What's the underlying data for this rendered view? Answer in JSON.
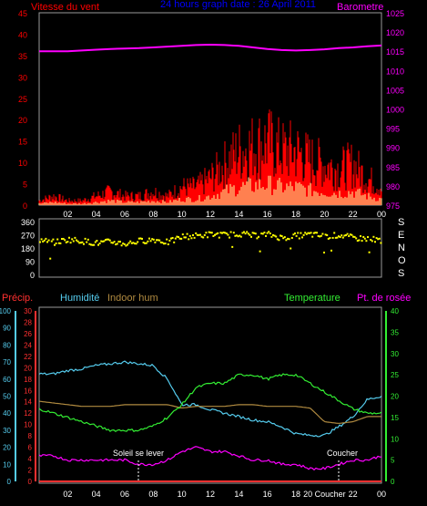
{
  "colors": {
    "wind": "#ff0000",
    "gust": "#ff0000",
    "avg": "#ffffa0",
    "baro": "#ff00ff",
    "dir": "#ffff00",
    "frame": "#9a9a9a",
    "temp": "#33ee33",
    "dew": "#ff00ff",
    "humid": "#55ccee",
    "indoor": "#b08a40",
    "precip": "#ff3030",
    "annot": "#ffffff",
    "title": "#0000ff",
    "tick": "#ffffff"
  },
  "panel1": {
    "title": "24 hours graph date : 26 April 2011",
    "left_label": "Vitesse du vent",
    "right_label": "Barometre",
    "left_ticks": [
      "45",
      "40",
      "35",
      "30",
      "25",
      "20",
      "15",
      "10",
      "5",
      "0"
    ],
    "right_ticks": [
      "1025",
      "1020",
      "1015",
      "1010",
      "1005",
      "1000",
      "995",
      "990",
      "985",
      "980",
      "975"
    ],
    "x_ticks": [
      "02",
      "04",
      "06",
      "08",
      "10",
      "12",
      "14",
      "16",
      "18",
      "20",
      "22",
      "00"
    ]
  },
  "panel2": {
    "left_ticks": [
      "360",
      "270",
      "180",
      "90",
      "0"
    ],
    "compass": [
      "S",
      "E",
      "N",
      "O",
      "S"
    ]
  },
  "panel3": {
    "label_precip": "Précip.",
    "label_humid": "Humidité",
    "label_indoor": "Indoor hum",
    "label_temp": "Temperature",
    "label_dew": "Pt. de rosée",
    "humid_ticks": [
      "100",
      "90",
      "80",
      "70",
      "60",
      "50",
      "40",
      "30",
      "20",
      "10",
      "0"
    ],
    "precip_ticks": [
      "30",
      "28",
      "26",
      "24",
      "22",
      "20",
      "18",
      "16",
      "14",
      "12",
      "10",
      "8",
      "6",
      "4",
      "2",
      "0"
    ],
    "right_ticks": [
      "40",
      "35",
      "30",
      "25",
      "20",
      "15",
      "10",
      "5",
      "0"
    ],
    "x_ticks": [
      "02",
      "04",
      "06",
      "08",
      "10",
      "12",
      "14",
      "16",
      "18",
      "20 Coucher",
      "22",
      "00"
    ],
    "sunrise": "Soleil se lever",
    "sunset": "Coucher"
  },
  "chart_data": [
    {
      "type": "line",
      "title": "24 hours graph date : 26 April 2011",
      "x": [
        0,
        1,
        2,
        3,
        4,
        5,
        6,
        7,
        8,
        9,
        10,
        11,
        12,
        13,
        14,
        15,
        16,
        17,
        18,
        19,
        20,
        21,
        22,
        23,
        24
      ],
      "x_tick_labels": [
        "02",
        "04",
        "06",
        "08",
        "10",
        "12",
        "14",
        "16",
        "18",
        "20",
        "22",
        "00"
      ],
      "series": [
        {
          "name": "Vitesse du vent",
          "axis": "left",
          "ylim": [
            0,
            45
          ],
          "values": [
            1,
            2,
            1,
            1,
            2,
            3,
            2,
            2,
            3,
            2,
            4,
            4,
            6,
            9,
            12,
            13,
            14,
            12,
            12,
            10,
            9,
            8,
            9,
            6,
            4
          ]
        },
        {
          "name": "Barometre",
          "axis": "right",
          "ylim": [
            975,
            1025
          ],
          "values": [
            1015,
            1015,
            1015,
            1015.2,
            1015.4,
            1015.6,
            1015.7,
            1015.8,
            1016,
            1016.2,
            1016.4,
            1016.6,
            1016.7,
            1016.6,
            1016.4,
            1016,
            1015.6,
            1015.3,
            1015.2,
            1015.3,
            1015.5,
            1015.8,
            1016,
            1016.3,
            1016.5
          ]
        }
      ]
    },
    {
      "type": "scatter",
      "title": "",
      "ylim": [
        0,
        360
      ],
      "series": [
        {
          "name": "",
          "values": [
            245,
            230,
            250,
            240,
            225,
            235,
            220,
            240,
            250,
            230,
            270,
            275,
            285,
            280,
            290,
            275,
            285,
            260,
            275,
            285,
            270,
            280,
            260,
            255,
            245
          ]
        }
      ]
    },
    {
      "type": "line",
      "title": "",
      "series": [
        {
          "name": "Humidité",
          "axis": "humid",
          "ylim": [
            0,
            100
          ],
          "values": [
            63,
            63,
            65,
            66,
            68,
            69,
            70,
            69,
            68,
            60,
            45,
            45,
            42,
            40,
            38,
            36,
            35,
            32,
            28,
            27,
            27,
            32,
            38,
            48,
            50
          ]
        },
        {
          "name": "Indoor hum",
          "axis": "humid",
          "ylim": [
            0,
            100
          ],
          "values": [
            47,
            46,
            45,
            44,
            44,
            44,
            45,
            45,
            45,
            45,
            43,
            44,
            44,
            44,
            45,
            45,
            44,
            44,
            44,
            43,
            35,
            34,
            35,
            38,
            38
          ]
        },
        {
          "name": "Temperature",
          "axis": "right",
          "ylim": [
            0,
            40
          ],
          "values": [
            17,
            16,
            15,
            14,
            13,
            12,
            12,
            12,
            13,
            15,
            18,
            22,
            23,
            23,
            25,
            25,
            24,
            25,
            25,
            23,
            21,
            19,
            17,
            16,
            16
          ]
        },
        {
          "name": "Pt. de rosée",
          "axis": "right",
          "ylim": [
            0,
            40
          ],
          "values": [
            6,
            6,
            5,
            5,
            5,
            5,
            5,
            4,
            4,
            5,
            7,
            8,
            7,
            7,
            6,
            5,
            5,
            4,
            4,
            3,
            3,
            4,
            5,
            5,
            6
          ]
        },
        {
          "name": "Précip.",
          "axis": "precip",
          "ylim": [
            0,
            30
          ],
          "values": [
            0,
            0,
            0,
            0,
            0,
            0,
            0,
            0,
            0,
            0,
            0,
            0,
            0,
            0,
            0,
            0,
            0,
            0,
            0,
            0,
            0,
            0,
            0,
            0,
            0
          ]
        }
      ]
    }
  ]
}
